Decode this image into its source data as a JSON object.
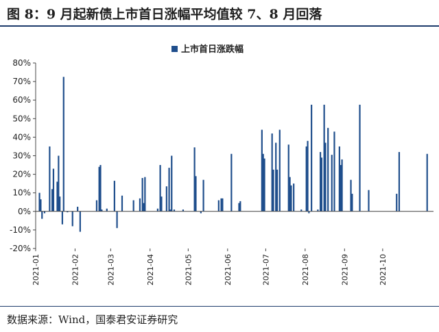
{
  "figure": {
    "title": "图 8：9 月起新债上市首日涨幅平均值较 7、8 月回落",
    "source": "数据来源：Wind，国泰君安证券研究"
  },
  "colors": {
    "bar": "#1f4e8c",
    "axis": "#444444",
    "text": "#222222",
    "rule": "#1c3a6a"
  },
  "chart_data": {
    "type": "bar",
    "title": "",
    "xlabel": "",
    "ylabel": "",
    "ylim": [
      -20,
      80
    ],
    "yticks": [
      "80%",
      "70%",
      "60%",
      "50%",
      "40%",
      "30%",
      "20%",
      "10%",
      "0%",
      "-10%",
      "-20%"
    ],
    "x_range": [
      "2021-01-01",
      "2021-11-10"
    ],
    "xticks": [
      "2021-01",
      "2021-02",
      "2021-03",
      "2021-04",
      "2021-05",
      "2021-06",
      "2021-07",
      "2021-08",
      "2021-09",
      "2021-10"
    ],
    "legend": {
      "position": "top-center",
      "entries": [
        "上市首日涨跌幅"
      ]
    },
    "grid": false,
    "series": [
      {
        "name": "上市首日涨跌幅",
        "points": [
          {
            "date": "2021-01-04",
            "value": 10
          },
          {
            "date": "2021-01-05",
            "value": 6.5
          },
          {
            "date": "2021-01-06",
            "value": -4
          },
          {
            "date": "2021-01-08",
            "value": -1
          },
          {
            "date": "2021-01-12",
            "value": 35
          },
          {
            "date": "2021-01-14",
            "value": 12
          },
          {
            "date": "2021-01-15",
            "value": 23
          },
          {
            "date": "2021-01-18",
            "value": 16
          },
          {
            "date": "2021-01-19",
            "value": 30
          },
          {
            "date": "2021-01-20",
            "value": 8
          },
          {
            "date": "2021-01-22",
            "value": -7
          },
          {
            "date": "2021-01-23",
            "value": 72.5
          },
          {
            "date": "2021-01-26",
            "value": -0.5
          },
          {
            "date": "2021-01-30",
            "value": -8
          },
          {
            "date": "2021-02-03",
            "value": 2.5
          },
          {
            "date": "2021-02-05",
            "value": -11
          },
          {
            "date": "2021-02-18",
            "value": 6
          },
          {
            "date": "2021-02-20",
            "value": 24
          },
          {
            "date": "2021-02-21",
            "value": 25
          },
          {
            "date": "2021-02-22",
            "value": 1
          },
          {
            "date": "2021-02-26",
            "value": 1.5
          },
          {
            "date": "2021-03-04",
            "value": 16.5
          },
          {
            "date": "2021-03-06",
            "value": -9
          },
          {
            "date": "2021-03-10",
            "value": 8.5
          },
          {
            "date": "2021-03-19",
            "value": 6
          },
          {
            "date": "2021-03-24",
            "value": 7
          },
          {
            "date": "2021-03-26",
            "value": 18
          },
          {
            "date": "2021-03-27",
            "value": 4.5
          },
          {
            "date": "2021-03-28",
            "value": 18.5
          },
          {
            "date": "2021-04-07",
            "value": 1.5
          },
          {
            "date": "2021-04-09",
            "value": 25
          },
          {
            "date": "2021-04-10",
            "value": 8
          },
          {
            "date": "2021-04-14",
            "value": 13.5
          },
          {
            "date": "2021-04-16",
            "value": 23.5
          },
          {
            "date": "2021-04-17",
            "value": 1
          },
          {
            "date": "2021-04-18",
            "value": 30
          },
          {
            "date": "2021-04-20",
            "value": 1
          },
          {
            "date": "2021-04-27",
            "value": 1
          },
          {
            "date": "2021-05-06",
            "value": 34.5
          },
          {
            "date": "2021-05-07",
            "value": 19
          },
          {
            "date": "2021-05-11",
            "value": -1
          },
          {
            "date": "2021-05-13",
            "value": 17
          },
          {
            "date": "2021-05-25",
            "value": 6
          },
          {
            "date": "2021-05-27",
            "value": 7
          },
          {
            "date": "2021-05-28",
            "value": 7
          },
          {
            "date": "2021-06-04",
            "value": 31
          },
          {
            "date": "2021-06-10",
            "value": 4.5
          },
          {
            "date": "2021-06-11",
            "value": 5.5
          },
          {
            "date": "2021-06-28",
            "value": 44
          },
          {
            "date": "2021-06-29",
            "value": 31
          },
          {
            "date": "2021-06-30",
            "value": 28.5
          },
          {
            "date": "2021-07-06",
            "value": 42
          },
          {
            "date": "2021-07-07",
            "value": 22.5
          },
          {
            "date": "2021-07-09",
            "value": 37
          },
          {
            "date": "2021-07-10",
            "value": 22.5
          },
          {
            "date": "2021-07-12",
            "value": 44
          },
          {
            "date": "2021-07-19",
            "value": 36
          },
          {
            "date": "2021-07-20",
            "value": 18.5
          },
          {
            "date": "2021-07-21",
            "value": 14
          },
          {
            "date": "2021-07-23",
            "value": 15
          },
          {
            "date": "2021-07-29",
            "value": 1
          },
          {
            "date": "2021-08-02",
            "value": 35
          },
          {
            "date": "2021-08-03",
            "value": 38
          },
          {
            "date": "2021-08-04",
            "value": -1
          },
          {
            "date": "2021-08-06",
            "value": 57.5
          },
          {
            "date": "2021-08-11",
            "value": 1
          },
          {
            "date": "2021-08-13",
            "value": 32
          },
          {
            "date": "2021-08-14",
            "value": 29
          },
          {
            "date": "2021-08-16",
            "value": 57.5
          },
          {
            "date": "2021-08-17",
            "value": 37
          },
          {
            "date": "2021-08-19",
            "value": 45
          },
          {
            "date": "2021-08-22",
            "value": 30.5
          },
          {
            "date": "2021-08-24",
            "value": 43
          },
          {
            "date": "2021-08-28",
            "value": 35
          },
          {
            "date": "2021-08-29",
            "value": 25
          },
          {
            "date": "2021-08-30",
            "value": 28
          },
          {
            "date": "2021-09-06",
            "value": 17
          },
          {
            "date": "2021-09-07",
            "value": 9.5
          },
          {
            "date": "2021-09-13",
            "value": 57.5
          },
          {
            "date": "2021-09-20",
            "value": 11.5
          },
          {
            "date": "2021-10-12",
            "value": 9.5
          },
          {
            "date": "2021-10-14",
            "value": 32
          },
          {
            "date": "2021-11-05",
            "value": 31
          }
        ]
      }
    ]
  }
}
